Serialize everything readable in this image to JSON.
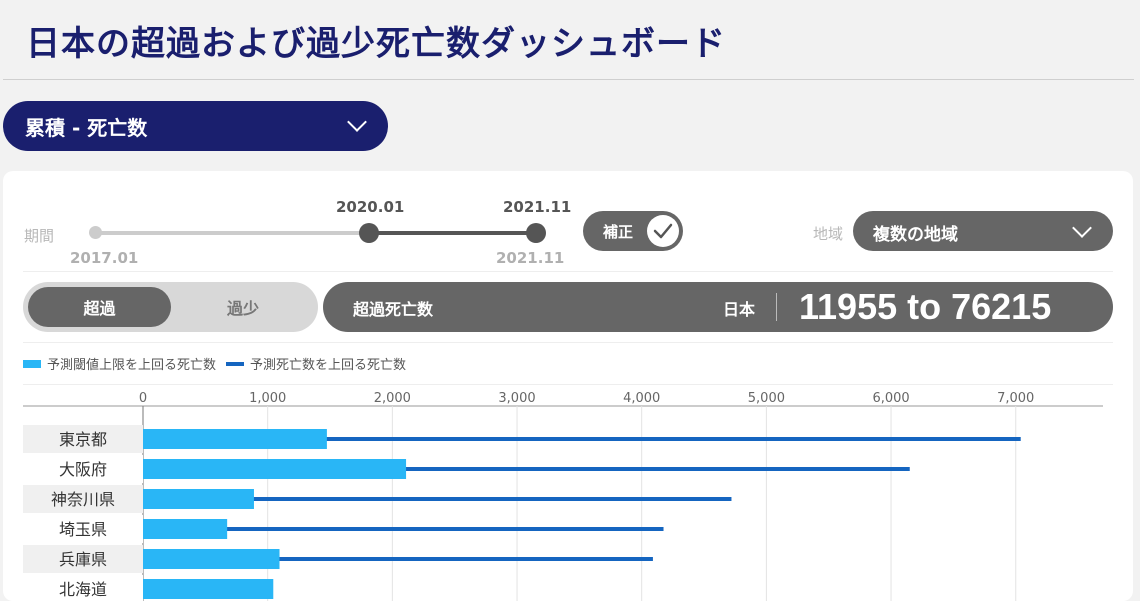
{
  "header": {
    "title": "日本の超過および過少死亡数ダッシュボード"
  },
  "metric_select": {
    "value": "累積 - 死亡数"
  },
  "period": {
    "label": "期間",
    "min_label": "2017.01",
    "max_label": "2021.11",
    "start_label": "2020.01",
    "end_label": "2021.11",
    "start_fraction": 0.62,
    "end_fraction": 1.0
  },
  "adjust_toggle": {
    "label": "補正",
    "checked": true
  },
  "region": {
    "label": "地域",
    "value": "複数の地域"
  },
  "mode": {
    "options": [
      "超過",
      "過少"
    ],
    "active": "超過"
  },
  "summary": {
    "label": "超過死亡数",
    "region": "日本",
    "value": "11955 to 76215"
  },
  "colors": {
    "brand": "#1a1f6e",
    "light_bar": "#29b6f6",
    "dark_bar": "#1565c0"
  },
  "chart_data": {
    "type": "bar",
    "orientation": "horizontal",
    "categories": [
      "東京都",
      "大阪府",
      "神奈川県",
      "埼玉県",
      "兵庫県",
      "北海道"
    ],
    "series": [
      {
        "name": "予測閾値上限を上回る死亡数",
        "values": [
          1475,
          2110,
          890,
          675,
          1095,
          1045
        ]
      },
      {
        "name": "予測死亡数を上回る死亡数",
        "values": [
          7040,
          6150,
          4720,
          4175,
          4090,
          null
        ]
      }
    ],
    "x_ticks": [
      "0",
      "1,000",
      "2,000",
      "3,000",
      "4,000",
      "5,000",
      "6,000",
      "7,000"
    ],
    "xlim": [
      0,
      7700
    ],
    "grid": true,
    "legend": "top-left"
  }
}
